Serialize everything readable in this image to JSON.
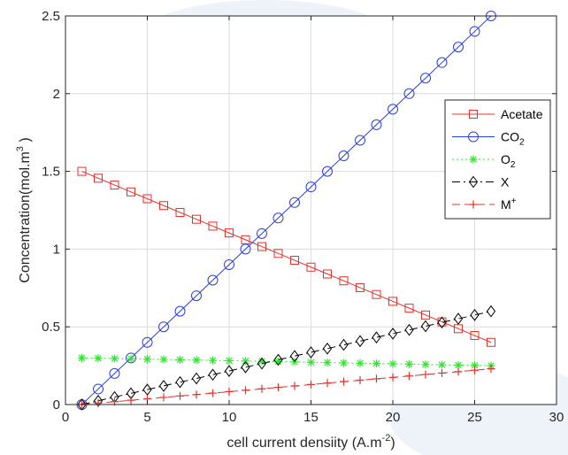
{
  "chart_data": {
    "type": "line",
    "title": "",
    "xlabel": {
      "main": "cell current densiity (A.m",
      "sup": "-2",
      "end": ")"
    },
    "ylabel": {
      "main": "Concentration(mol.m",
      "sup": "3",
      "end": " )"
    },
    "xlim": [
      0,
      30
    ],
    "ylim": [
      0,
      2.5
    ],
    "xticks": [
      0,
      5,
      10,
      15,
      20,
      25,
      30
    ],
    "yticks": [
      0,
      0.5,
      1,
      1.5,
      2,
      2.5
    ],
    "xtick_labels": [
      "0",
      "5",
      "10",
      "15",
      "20",
      "25",
      "30"
    ],
    "ytick_labels": [
      "0",
      "0.5",
      "1",
      "1.5",
      "2",
      "2.5"
    ],
    "grid": true,
    "legend_position": "right",
    "x": [
      1,
      2,
      3,
      4,
      5,
      6,
      7,
      8,
      9,
      10,
      11,
      12,
      13,
      14,
      15,
      16,
      17,
      18,
      19,
      20,
      21,
      22,
      23,
      24,
      25,
      26
    ],
    "series": [
      {
        "name": "Acetate",
        "label_main": "Acetate",
        "label_sub": "",
        "label_sup": "",
        "color": "#e8302a",
        "dash": "solid",
        "marker": "square",
        "values": [
          1.5,
          1.456,
          1.412,
          1.368,
          1.324,
          1.28,
          1.236,
          1.192,
          1.148,
          1.104,
          1.06,
          1.016,
          0.972,
          0.928,
          0.884,
          0.84,
          0.796,
          0.752,
          0.708,
          0.664,
          0.62,
          0.576,
          0.532,
          0.488,
          0.444,
          0.4
        ]
      },
      {
        "name": "CO2",
        "label_main": "CO",
        "label_sub": "2",
        "label_sup": "",
        "color": "#2b3fe0",
        "dash": "solid",
        "marker": "circle",
        "values": [
          0,
          0.1,
          0.2,
          0.3,
          0.4,
          0.5,
          0.6,
          0.7,
          0.8,
          0.9,
          1.0,
          1.1,
          1.2,
          1.3,
          1.4,
          1.5,
          1.6,
          1.7,
          1.8,
          1.9,
          2.0,
          2.1,
          2.2,
          2.3,
          2.4,
          2.5
        ]
      },
      {
        "name": "O2",
        "label_main": "O",
        "label_sub": "2",
        "label_sup": "",
        "color": "#2ee82e",
        "dash": "dotted",
        "marker": "asterisk",
        "values": [
          0.3,
          0.298,
          0.296,
          0.294,
          0.292,
          0.29,
          0.288,
          0.286,
          0.284,
          0.282,
          0.28,
          0.278,
          0.276,
          0.274,
          0.272,
          0.27,
          0.268,
          0.266,
          0.264,
          0.262,
          0.26,
          0.258,
          0.256,
          0.254,
          0.252,
          0.25
        ]
      },
      {
        "name": "X",
        "label_main": "X",
        "label_sub": "",
        "label_sup": "",
        "color": "#000000",
        "dash": "dashdot",
        "marker": "diamond",
        "values": [
          0,
          0.024,
          0.048,
          0.072,
          0.096,
          0.12,
          0.144,
          0.168,
          0.192,
          0.216,
          0.24,
          0.264,
          0.288,
          0.312,
          0.336,
          0.36,
          0.384,
          0.408,
          0.432,
          0.456,
          0.48,
          0.504,
          0.528,
          0.552,
          0.576,
          0.6
        ]
      },
      {
        "name": "M+",
        "label_main": "M",
        "label_sub": "",
        "label_sup": "+",
        "color": "#e8302a",
        "dash": "dashed",
        "marker": "plus",
        "values": [
          0,
          0.0092,
          0.0184,
          0.0276,
          0.0368,
          0.046,
          0.0552,
          0.0644,
          0.0736,
          0.0828,
          0.092,
          0.1012,
          0.1104,
          0.1196,
          0.1288,
          0.138,
          0.1472,
          0.1564,
          0.1656,
          0.1748,
          0.184,
          0.1932,
          0.2024,
          0.2116,
          0.2208,
          0.23
        ]
      }
    ]
  }
}
